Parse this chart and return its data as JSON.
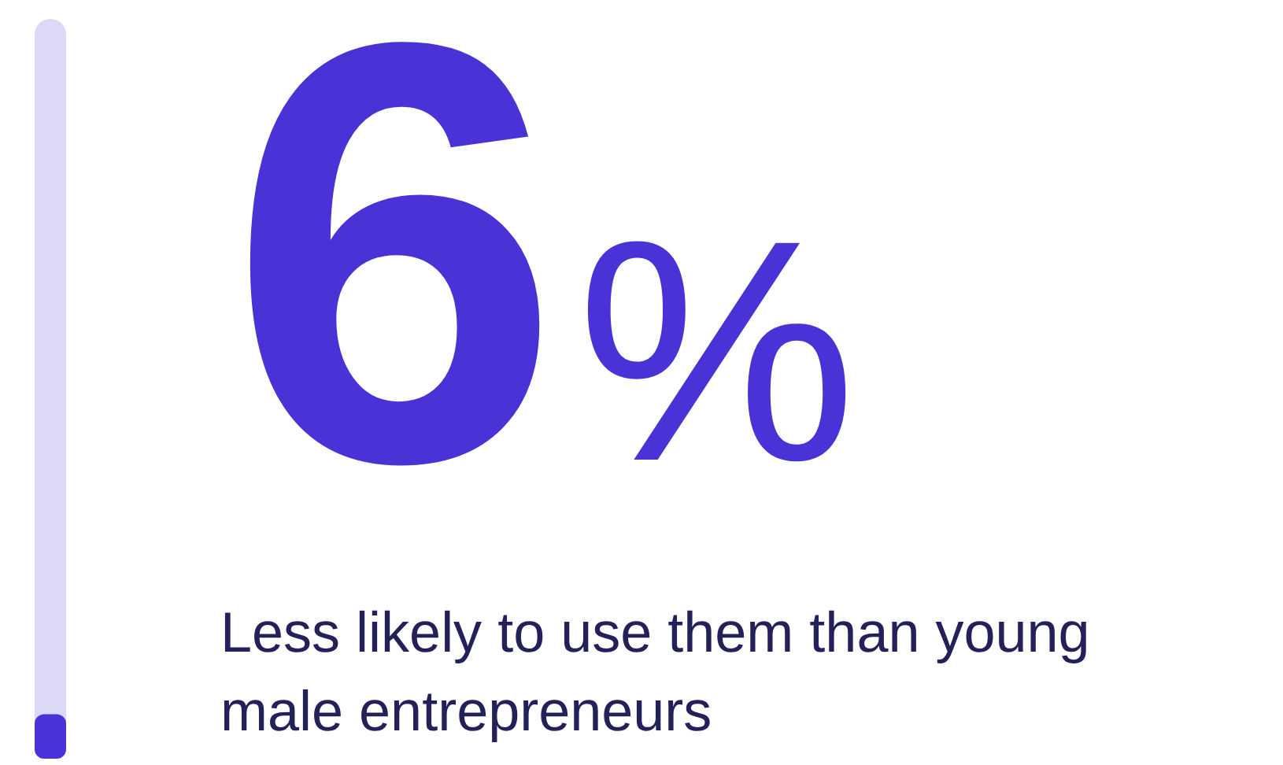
{
  "chart_data": {
    "type": "bar",
    "categories": [
      null
    ],
    "values": [
      6
    ],
    "value_labels": [
      "6%"
    ],
    "color": "#4a33d6",
    "ylim": [
      0,
      100
    ],
    "annotations": [
      "Less likely to use them than young male entrepreneurs"
    ]
  }
}
